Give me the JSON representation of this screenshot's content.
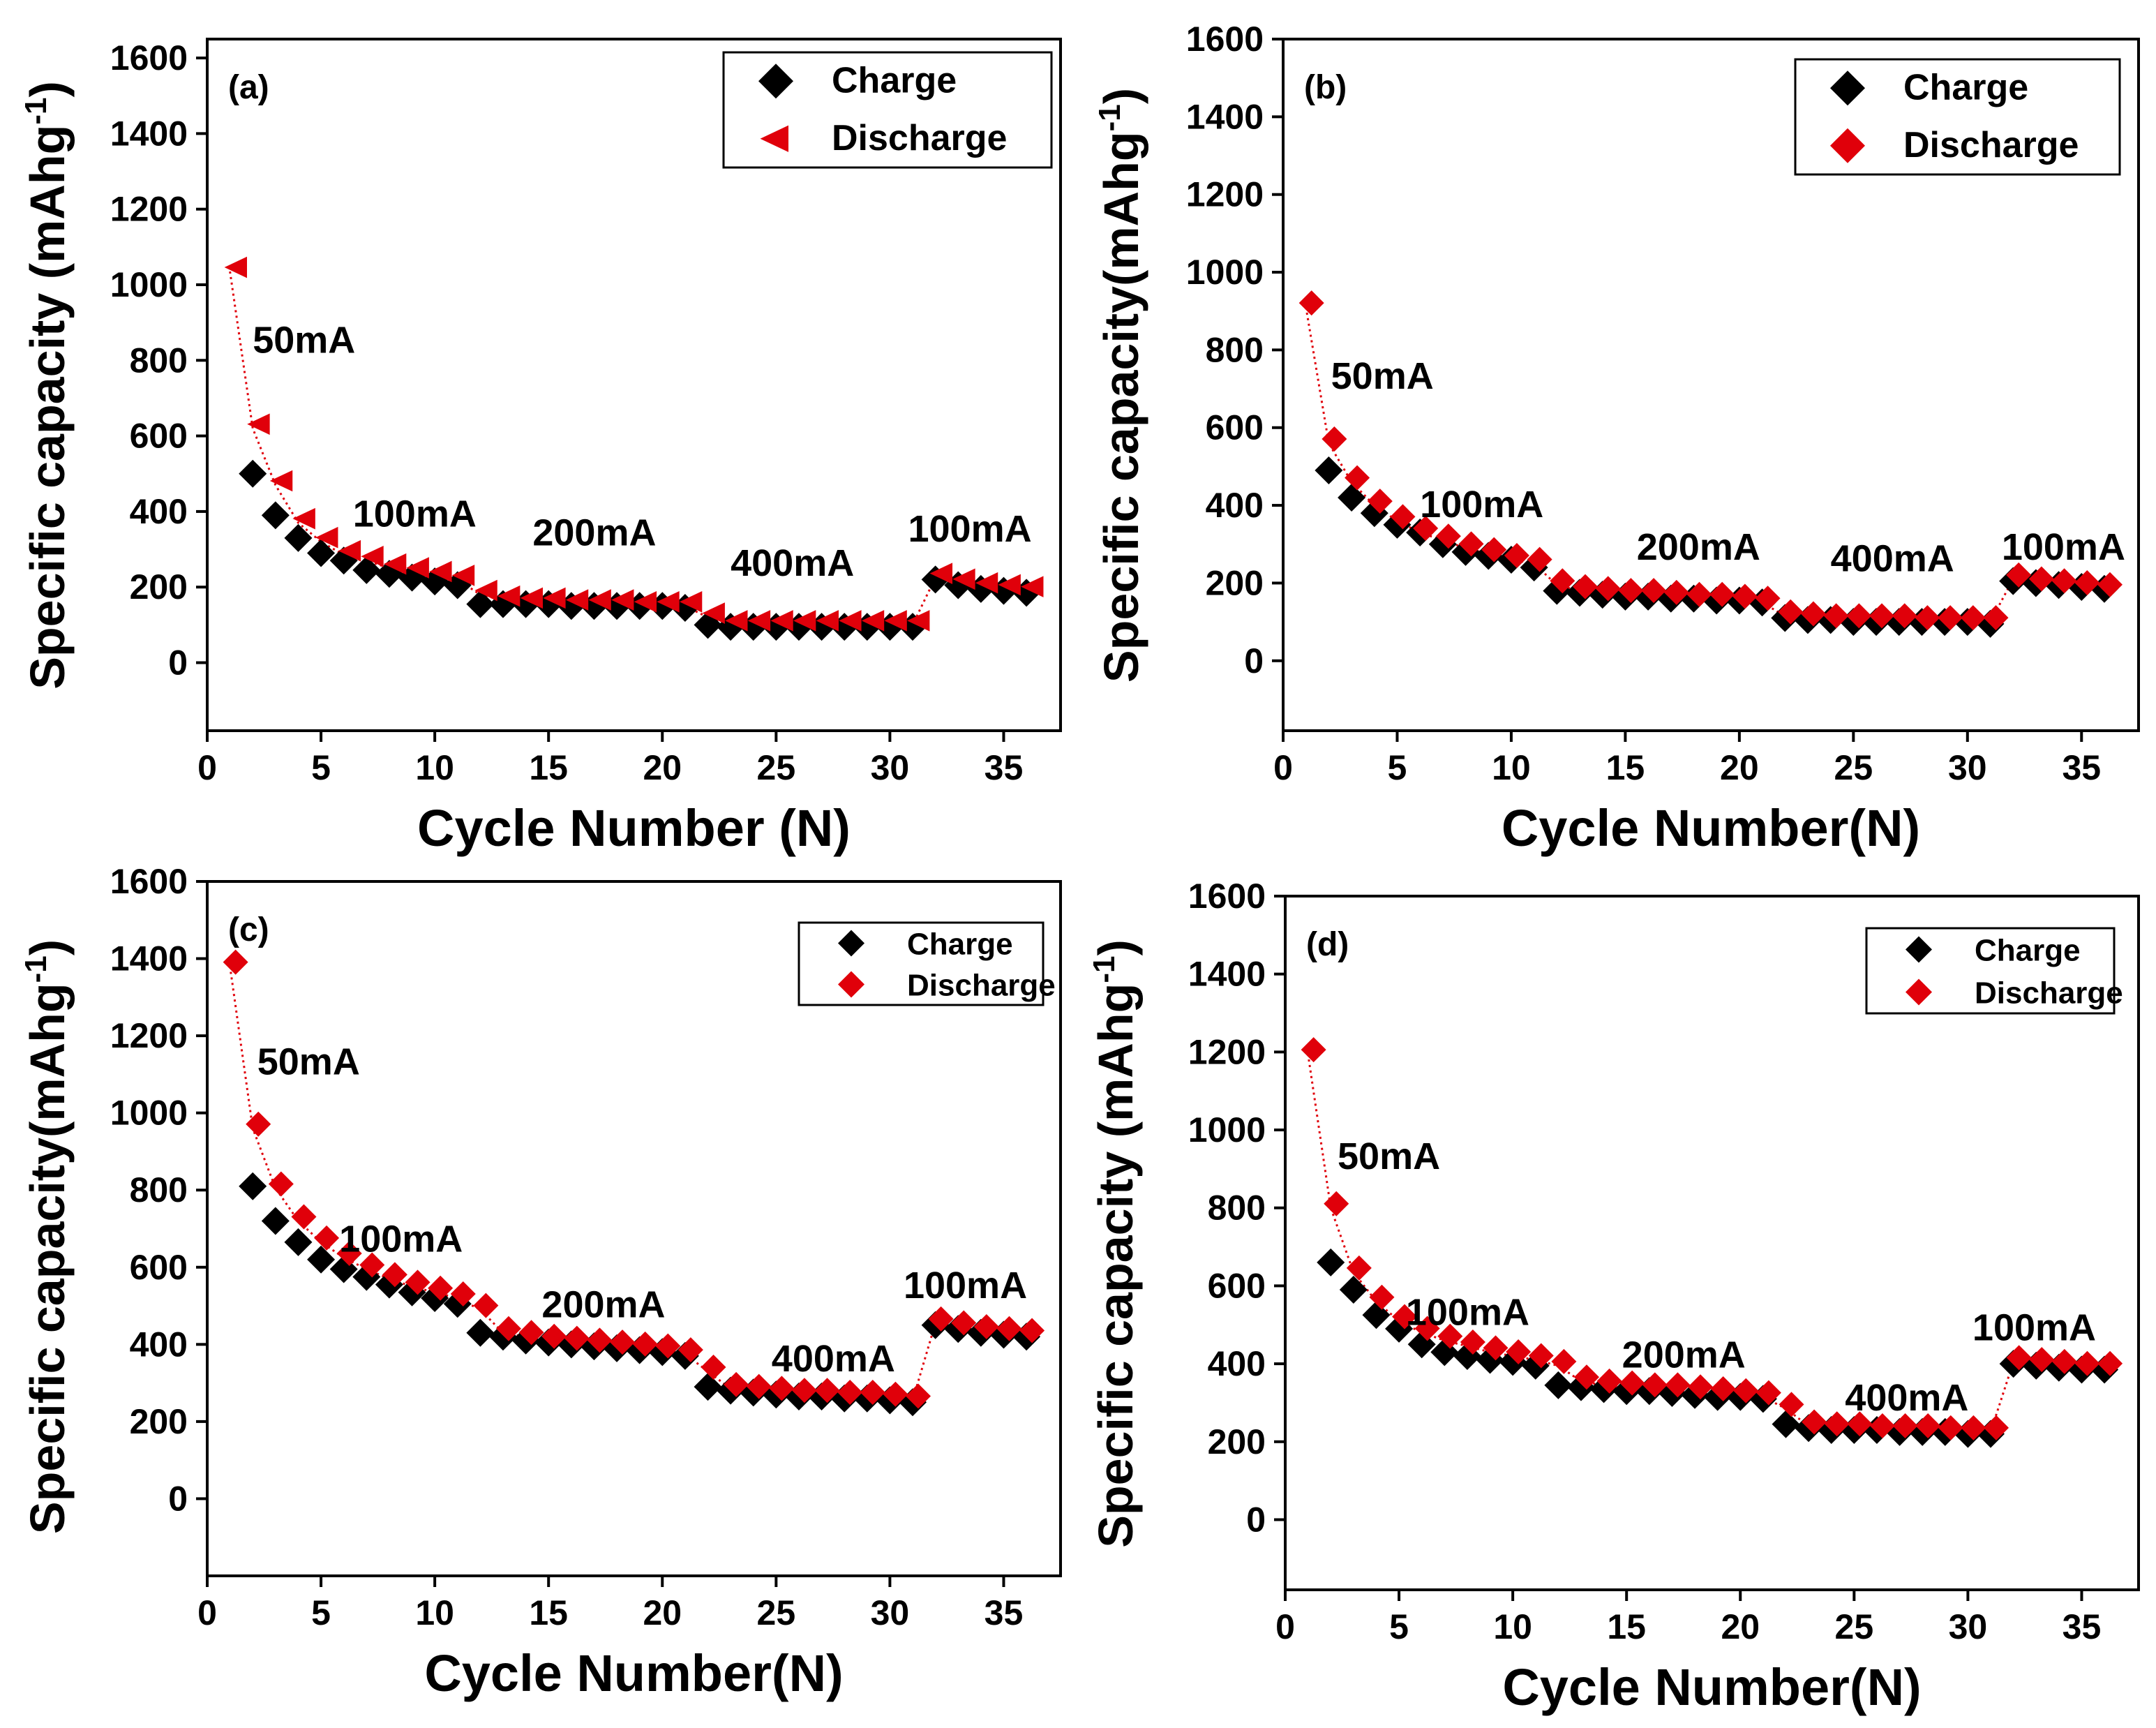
{
  "figure": {
    "colors": {
      "charge": "#000000",
      "discharge": "#e0000a",
      "axis": "#000000",
      "link": "#e0000a"
    },
    "panels": [
      {
        "id": "a",
        "chart_data": {
          "type": "scatter",
          "panel_label": "(a)",
          "xlabel": "Cycle Number (N)",
          "ylabel_main": "Specific capacity (mAhg",
          "ylabel_sup": "-1",
          "ylabel_end": ")",
          "xlim": [
            0,
            37.5
          ],
          "ylim": [
            -180,
            1650
          ],
          "xticks": [
            0,
            5,
            10,
            15,
            20,
            25,
            30,
            35
          ],
          "yticks": [
            0,
            200,
            400,
            600,
            800,
            1000,
            1200,
            1400,
            1600
          ],
          "discharge_marker": "triangle-left",
          "legend": {
            "position": "top-right",
            "entries": [
              "Charge",
              "Discharge"
            ]
          },
          "annotations": [
            {
              "text": "50mA",
              "x": 2.0,
              "y": 820
            },
            {
              "text": "100mA",
              "x": 6.4,
              "y": 360
            },
            {
              "text": "200mA",
              "x": 14.3,
              "y": 310
            },
            {
              "text": "400mA",
              "x": 23.0,
              "y": 230
            },
            {
              "text": "100mA",
              "x": 30.8,
              "y": 320
            }
          ],
          "series": [
            {
              "name": "Charge",
              "x": [
                2,
                3,
                4,
                5,
                6,
                7,
                8,
                9,
                10,
                11,
                12,
                13,
                14,
                15,
                16,
                17,
                18,
                19,
                20,
                21,
                22,
                23,
                24,
                25,
                26,
                27,
                28,
                29,
                30,
                31,
                32,
                33,
                34,
                35,
                36
              ],
              "y": [
                500,
                390,
                330,
                290,
                270,
                245,
                235,
                225,
                215,
                205,
                155,
                155,
                155,
                155,
                150,
                150,
                150,
                150,
                150,
                145,
                100,
                95,
                95,
                95,
                95,
                95,
                95,
                95,
                95,
                95,
                220,
                205,
                195,
                190,
                185
              ]
            },
            {
              "name": "Discharge",
              "x": [
                1,
                2,
                3,
                4,
                5,
                6,
                7,
                8,
                9,
                10,
                11,
                12,
                13,
                14,
                15,
                16,
                17,
                18,
                19,
                20,
                21,
                22,
                23,
                24,
                25,
                26,
                27,
                28,
                29,
                30,
                31,
                32,
                33,
                34,
                35,
                36
              ],
              "y": [
                1035,
                620,
                470,
                370,
                320,
                285,
                270,
                250,
                240,
                230,
                220,
                180,
                165,
                160,
                160,
                155,
                155,
                155,
                150,
                150,
                150,
                120,
                100,
                100,
                100,
                100,
                100,
                100,
                100,
                100,
                100,
                225,
                210,
                200,
                195,
                190
              ]
            }
          ]
        }
      },
      {
        "id": "b",
        "chart_data": {
          "type": "scatter",
          "panel_label": "(b)",
          "xlabel": "Cycle Number(N)",
          "ylabel_main": "Specific capacity(mAhg",
          "ylabel_sup": "-1",
          "ylabel_end": ")",
          "xlim": [
            0,
            37.5
          ],
          "ylim": [
            -180,
            1600
          ],
          "xticks": [
            0,
            5,
            10,
            15,
            20,
            25,
            30,
            35
          ],
          "yticks": [
            0,
            200,
            400,
            600,
            800,
            1000,
            1200,
            1400,
            1600
          ],
          "discharge_marker": "diamond",
          "legend": {
            "position": "top-right",
            "entries": [
              "Charge",
              "Discharge"
            ]
          },
          "annotations": [
            {
              "text": "50mA",
              "x": 2.1,
              "y": 700
            },
            {
              "text": "100mA",
              "x": 6.0,
              "y": 370
            },
            {
              "text": "200mA",
              "x": 15.5,
              "y": 260
            },
            {
              "text": "400mA",
              "x": 24.0,
              "y": 230
            },
            {
              "text": "100mA",
              "x": 31.5,
              "y": 260
            }
          ],
          "series": [
            {
              "name": "Charge",
              "x": [
                2,
                3,
                4,
                5,
                6,
                7,
                8,
                9,
                10,
                11,
                12,
                13,
                14,
                15,
                16,
                17,
                18,
                19,
                20,
                21,
                22,
                23,
                24,
                25,
                26,
                27,
                28,
                29,
                30,
                31,
                32,
                33,
                34,
                35,
                36
              ],
              "y": [
                490,
                420,
                380,
                350,
                330,
                300,
                280,
                270,
                260,
                240,
                180,
                175,
                170,
                165,
                165,
                160,
                160,
                155,
                155,
                150,
                110,
                105,
                105,
                100,
                100,
                100,
                100,
                100,
                100,
                95,
                205,
                200,
                195,
                190,
                185
              ]
            },
            {
              "name": "Discharge",
              "x": [
                1,
                2,
                3,
                4,
                5,
                6,
                7,
                8,
                9,
                10,
                11,
                12,
                13,
                14,
                15,
                16,
                17,
                18,
                19,
                20,
                21,
                22,
                23,
                24,
                25,
                26,
                27,
                28,
                29,
                30,
                31,
                32,
                33,
                34,
                35,
                36
              ],
              "y": [
                910,
                560,
                460,
                400,
                360,
                330,
                310,
                290,
                275,
                260,
                250,
                195,
                180,
                175,
                170,
                170,
                165,
                160,
                160,
                155,
                150,
                115,
                110,
                105,
                105,
                105,
                105,
                100,
                100,
                100,
                100,
                210,
                200,
                195,
                190,
                185
              ]
            }
          ]
        }
      },
      {
        "id": "c",
        "chart_data": {
          "type": "scatter",
          "panel_label": "(c)",
          "xlabel": "Cycle Number(N)",
          "ylabel_main": "Specific capacity(mAhg",
          "ylabel_sup": "-1",
          "ylabel_end": ")",
          "xlim": [
            0,
            37.5
          ],
          "ylim": [
            -200,
            1600
          ],
          "xticks": [
            0,
            5,
            10,
            15,
            20,
            25,
            30,
            35
          ],
          "yticks": [
            0,
            200,
            400,
            600,
            800,
            1000,
            1200,
            1400,
            1600
          ],
          "discharge_marker": "diamond",
          "legend": {
            "position": "top-right",
            "entries": [
              "Charge",
              "Discharge"
            ]
          },
          "annotations": [
            {
              "text": "50mA",
              "x": 2.2,
              "y": 1100
            },
            {
              "text": "100mA",
              "x": 5.8,
              "y": 640
            },
            {
              "text": "200mA",
              "x": 14.7,
              "y": 470
            },
            {
              "text": "400mA",
              "x": 24.8,
              "y": 330
            },
            {
              "text": "100mA",
              "x": 30.6,
              "y": 520
            }
          ],
          "series": [
            {
              "name": "Charge",
              "x": [
                2,
                3,
                4,
                5,
                6,
                7,
                8,
                9,
                10,
                11,
                12,
                13,
                14,
                15,
                16,
                17,
                18,
                19,
                20,
                21,
                22,
                23,
                24,
                25,
                26,
                27,
                28,
                29,
                30,
                31,
                32,
                33,
                34,
                35,
                36
              ],
              "y": [
                810,
                720,
                665,
                620,
                595,
                575,
                555,
                535,
                520,
                505,
                430,
                420,
                410,
                405,
                400,
                395,
                390,
                385,
                380,
                370,
                290,
                280,
                275,
                270,
                265,
                265,
                260,
                260,
                255,
                250,
                450,
                440,
                430,
                425,
                420
              ]
            },
            {
              "name": "Discharge",
              "x": [
                1,
                2,
                3,
                4,
                5,
                6,
                7,
                8,
                9,
                10,
                11,
                12,
                13,
                14,
                15,
                16,
                17,
                18,
                19,
                20,
                21,
                22,
                23,
                24,
                25,
                26,
                27,
                28,
                29,
                30,
                31,
                32,
                33,
                34,
                35,
                36
              ],
              "y": [
                1380,
                960,
                805,
                720,
                665,
                625,
                595,
                570,
                550,
                535,
                520,
                490,
                430,
                420,
                410,
                405,
                400,
                395,
                390,
                385,
                375,
                330,
                285,
                280,
                275,
                270,
                270,
                265,
                265,
                260,
                255,
                455,
                445,
                435,
                430,
                425
              ]
            }
          ]
        }
      },
      {
        "id": "d",
        "chart_data": {
          "type": "scatter",
          "panel_label": "(d)",
          "xlabel": "Cycle Number(N)",
          "ylabel_main": "Specific capacity (mAhg",
          "ylabel_sup": "-1",
          "ylabel_end": ")",
          "xlim": [
            0,
            37.5
          ],
          "ylim": [
            -180,
            1600
          ],
          "xticks": [
            0,
            5,
            10,
            15,
            20,
            25,
            30,
            35
          ],
          "yticks": [
            0,
            200,
            400,
            600,
            800,
            1000,
            1200,
            1400,
            1600
          ],
          "discharge_marker": "diamond",
          "legend": {
            "position": "top-right",
            "entries": [
              "Charge",
              "Discharge"
            ]
          },
          "annotations": [
            {
              "text": "50mA",
              "x": 2.3,
              "y": 900
            },
            {
              "text": "100mA",
              "x": 5.3,
              "y": 500
            },
            {
              "text": "200mA",
              "x": 14.8,
              "y": 390
            },
            {
              "text": "400mA",
              "x": 24.6,
              "y": 280
            },
            {
              "text": "100mA",
              "x": 30.2,
              "y": 460
            }
          ],
          "series": [
            {
              "name": "Charge",
              "x": [
                2,
                3,
                4,
                5,
                6,
                7,
                8,
                9,
                10,
                11,
                12,
                13,
                14,
                15,
                16,
                17,
                18,
                19,
                20,
                21,
                22,
                23,
                24,
                25,
                26,
                27,
                28,
                29,
                30,
                31,
                32,
                33,
                34,
                35,
                36
              ],
              "y": [
                660,
                590,
                525,
                490,
                450,
                430,
                420,
                410,
                405,
                395,
                345,
                340,
                335,
                330,
                330,
                325,
                320,
                315,
                315,
                310,
                245,
                235,
                230,
                230,
                230,
                225,
                225,
                225,
                220,
                220,
                400,
                395,
                390,
                385,
                385
              ]
            },
            {
              "name": "Discharge",
              "x": [
                1,
                2,
                3,
                4,
                5,
                6,
                7,
                8,
                9,
                10,
                11,
                12,
                13,
                14,
                15,
                16,
                17,
                18,
                19,
                20,
                21,
                22,
                23,
                24,
                25,
                26,
                27,
                28,
                29,
                30,
                31,
                32,
                33,
                34,
                35,
                36
              ],
              "y": [
                1195,
                800,
                635,
                560,
                510,
                480,
                460,
                445,
                430,
                420,
                410,
                395,
                355,
                345,
                340,
                335,
                335,
                330,
                325,
                320,
                315,
                285,
                240,
                235,
                235,
                230,
                230,
                230,
                225,
                225,
                225,
                405,
                400,
                395,
                390,
                390
              ]
            }
          ]
        }
      }
    ]
  }
}
